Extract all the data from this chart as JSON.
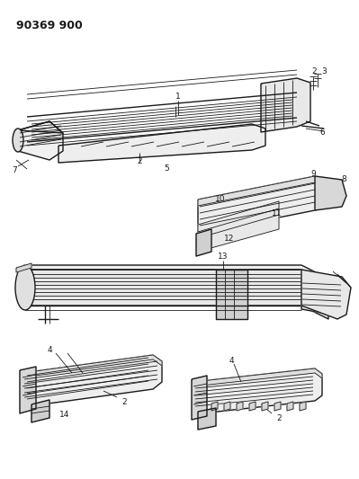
{
  "title": "90369 900",
  "bg_color": "#ffffff",
  "line_color": "#1a1a1a",
  "figsize": [
    3.99,
    5.33
  ],
  "dpi": 100,
  "title_fontsize": 9,
  "label_fontsize": 6.5
}
